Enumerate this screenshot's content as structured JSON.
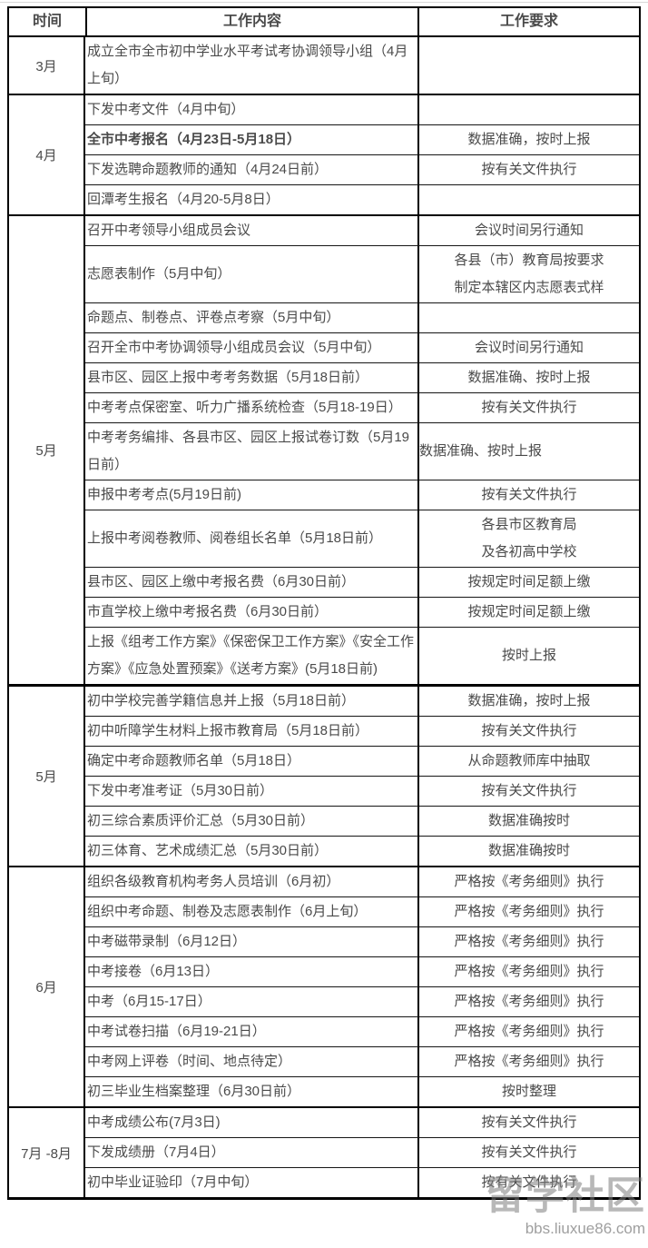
{
  "table": {
    "headers": {
      "time": "时间",
      "content": "工作内容",
      "requirement": "工作要求"
    },
    "groups": [
      {
        "month": "3月",
        "rows": [
          {
            "content": "成立全市全市初中学业水平考试考协调领导小组（4月上旬）",
            "requirement": ""
          }
        ]
      },
      {
        "month": "4月",
        "rows": [
          {
            "content": "下发中考文件（4月中旬）",
            "requirement": ""
          },
          {
            "content": "全市中考报名（4月23日-5月18日）",
            "requirement": "数据准确，按时上报",
            "bold": true
          },
          {
            "content": "下发选聘命题教师的通知（4月24日前）",
            "requirement": "按有关文件执行"
          },
          {
            "content": "回潭考生报名（4月20-5月8日）",
            "requirement": ""
          }
        ]
      },
      {
        "month": "5月",
        "rows": [
          {
            "content": "召开中考领导小组成员会议",
            "requirement": "会议时间另行通知"
          },
          {
            "content": "志愿表制作（5月中旬）",
            "requirement": "各县（市）教育局按要求\n制定本辖区内志愿表式样"
          },
          {
            "content": "命题点、制卷点、评卷点考察（5月中旬）",
            "requirement": ""
          },
          {
            "content": "召开全市中考协调领导小组成员会议（5月中旬）",
            "requirement": "会议时间另行通知"
          },
          {
            "content": "县市区、园区上报中考考务数据（5月18日前）",
            "requirement": "数据准确、按时上报"
          },
          {
            "content": "中考考点保密室、听力广播系统检查（5月18-19日）",
            "requirement": "按有关文件执行"
          },
          {
            "content": "中考考务编排、各县市区、园区上报试卷订数（5月19日前）",
            "requirement": "数据准确、按时上报",
            "req_align": "left"
          },
          {
            "content": "申报中考考点(5月19日前)",
            "requirement": "按有关文件执行"
          },
          {
            "content": "上报中考阅卷教师、阅卷组长名单（5月18日前）",
            "requirement": "各县市区教育局\n及各初高中学校"
          },
          {
            "content": "县市区、园区上缴中考报名费（6月30日前）",
            "requirement": "按规定时间足额上缴"
          },
          {
            "content": "市直学校上缴中考报名费（6月30日前）",
            "requirement": "按规定时间足额上缴"
          },
          {
            "content": "上报《组考工作方案》《保密保卫工作方案》《安全工作方案》《应急处置预案》《送考方案》(5月18日前)",
            "requirement": "按时上报"
          }
        ]
      },
      {
        "month": "5月",
        "rows": [
          {
            "content": "初中学校完善学籍信息并上报（5月18日前）",
            "requirement": "数据准确，按时上报"
          },
          {
            "content": "初中听障学生材料上报市教育局（5月18日前）",
            "requirement": "按有关文件执行"
          },
          {
            "content": "确定中考命题教师名单（5月18日）",
            "requirement": "从命题教师库中抽取"
          },
          {
            "content": "下发中考准考证（5月30日前）",
            "requirement": "按有关文件执行"
          },
          {
            "content": "初三综合素质评价汇总（5月30日前）",
            "requirement": "数据准确按时"
          },
          {
            "content": "初三体育、艺术成绩汇总（5月30日前）",
            "requirement": "数据准确按时"
          }
        ]
      },
      {
        "month": "6月",
        "rows": [
          {
            "content": "组织各级教育机构考务人员培训（6月初）",
            "requirement": "严格按《考务细则》执行"
          },
          {
            "content": "组织中考命题、制卷及志愿表制作（6月上旬）",
            "requirement": "严格按《考务细则》执行"
          },
          {
            "content": "中考磁带录制（6月12日）",
            "requirement": "严格按《考务细则》执行"
          },
          {
            "content": "中考接卷（6月13日）",
            "requirement": "严格按《考务细则》执行"
          },
          {
            "content": "中考（6月15-17日）",
            "requirement": "严格按《考务细则》执行"
          },
          {
            "content": "中考试卷扫描（6月19-21日）",
            "requirement": "严格按《考务细则》执行"
          },
          {
            "content": "中考网上评卷（时间、地点待定）",
            "requirement": "严格按《考务细则》执行"
          },
          {
            "content": "初三毕业生档案整理（6月30日前）",
            "requirement": "按时整理"
          }
        ]
      },
      {
        "month": "7月 -8月",
        "rows": [
          {
            "content": "中考成绩公布(7月3日)",
            "requirement": "按有关文件执行"
          },
          {
            "content": "下发成绩册（7月4日）",
            "requirement": "按有关文件执行"
          },
          {
            "content": "初中毕业证验印（7月中旬）",
            "requirement": "按有关文件执行"
          }
        ]
      }
    ]
  },
  "watermark": {
    "text": "留学社区",
    "url": "bbs.liuxue86.com"
  },
  "colors": {
    "border": "#000000",
    "text": "#4a4a4a",
    "background": "#ffffff",
    "watermark": "#7d7d7d"
  }
}
